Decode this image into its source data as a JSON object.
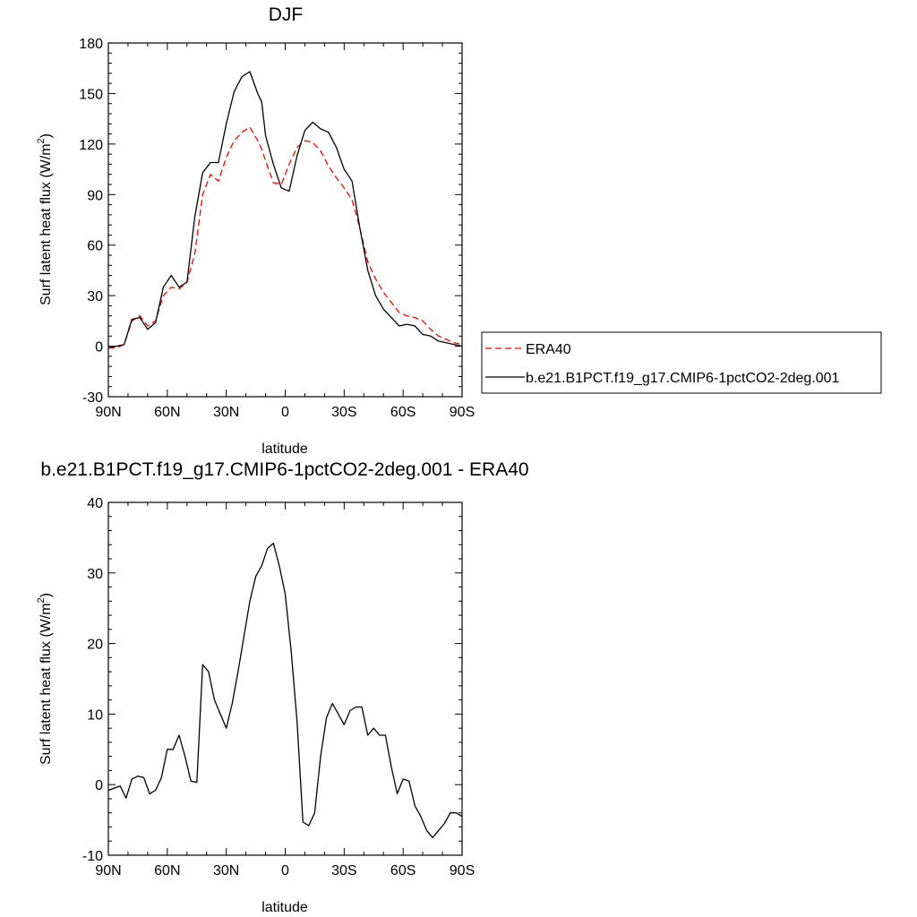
{
  "chart_data": [
    {
      "type": "line",
      "title": "DJF",
      "xlabel": "latitude",
      "ylabel": "Surf latent heat flux (W/m",
      "ylabel_sup": "2",
      "ylabel_end": ")",
      "xlim": [
        -90,
        90
      ],
      "ylim": [
        -30,
        180
      ],
      "x_ticks": [
        -90,
        -60,
        -30,
        0,
        30,
        60,
        90
      ],
      "x_tick_labels": [
        "90N",
        "60N",
        "30N",
        "0",
        "30S",
        "60S",
        "90S"
      ],
      "y_ticks": [
        -30,
        0,
        30,
        60,
        90,
        120,
        150,
        180
      ],
      "grid": false,
      "legend_position": "right",
      "series": [
        {
          "name": "ERA40",
          "color": "#ff0000",
          "dash": "dashed",
          "x": [
            -90,
            -86,
            -82,
            -78,
            -74,
            -70,
            -66,
            -62,
            -58,
            -54,
            -50,
            -46,
            -42,
            -38,
            -34,
            -30,
            -26,
            -22,
            -18,
            -14,
            -12,
            -10,
            -6,
            -2,
            2,
            6,
            10,
            14,
            18,
            22,
            26,
            30,
            34,
            38,
            42,
            46,
            50,
            54,
            58,
            62,
            66,
            70,
            74,
            78,
            82,
            86,
            90
          ],
          "y": [
            -1,
            -1,
            1,
            15,
            18,
            12,
            15,
            30,
            35,
            34,
            38,
            55,
            90,
            102,
            98,
            112,
            122,
            127,
            130,
            122,
            117,
            110,
            97,
            96,
            108,
            118,
            122,
            121,
            116,
            107,
            100,
            94,
            87,
            70,
            50,
            40,
            32,
            26,
            20,
            18,
            17,
            15,
            10,
            6,
            4,
            2,
            1
          ]
        },
        {
          "name": "b.e21.B1PCT.f19_g17.CMIP6-1pctCO2-2deg.001",
          "color": "#000000",
          "dash": "solid",
          "x": [
            -90,
            -86,
            -82,
            -78,
            -74,
            -70,
            -66,
            -62,
            -58,
            -54,
            -50,
            -46,
            -42,
            -38,
            -34,
            -30,
            -26,
            -22,
            -18,
            -14,
            -12,
            -10,
            -6,
            -2,
            2,
            6,
            10,
            14,
            18,
            22,
            26,
            30,
            34,
            38,
            42,
            46,
            50,
            54,
            58,
            62,
            66,
            70,
            74,
            78,
            82,
            86,
            90
          ],
          "y": [
            -1,
            0,
            1,
            16,
            17,
            10,
            14,
            35,
            42,
            35,
            38,
            77,
            103,
            109,
            109,
            132,
            151,
            160,
            163,
            150,
            145,
            125,
            108,
            94,
            92,
            113,
            128,
            133,
            129,
            127,
            118,
            105,
            98,
            70,
            45,
            30,
            22,
            17,
            12,
            13,
            12,
            7,
            6,
            3,
            2,
            1,
            0
          ]
        }
      ]
    },
    {
      "type": "line",
      "title": "b.e21.B1PCT.f19_g17.CMIP6-1pctCO2-2deg.001 - ERA40",
      "xlabel": "latitude",
      "ylabel": "Surf latent heat flux (W/m",
      "ylabel_sup": "2",
      "ylabel_end": ")",
      "xlim": [
        -90,
        90
      ],
      "ylim": [
        -10,
        40
      ],
      "x_ticks": [
        -90,
        -60,
        -30,
        0,
        30,
        60,
        90
      ],
      "x_tick_labels": [
        "90N",
        "60N",
        "30N",
        "0",
        "30S",
        "60S",
        "90S"
      ],
      "y_ticks": [
        -10,
        0,
        10,
        20,
        30,
        40
      ],
      "grid": false,
      "series": [
        {
          "color": "#000000",
          "dash": "solid",
          "x": [
            -90,
            -87,
            -84,
            -81,
            -78,
            -75,
            -72,
            -69,
            -66,
            -63,
            -60,
            -57,
            -54,
            -51,
            -48,
            -45,
            -42,
            -39,
            -36,
            -33,
            -30,
            -27,
            -24,
            -21,
            -18,
            -15,
            -12,
            -9,
            -6,
            -3,
            0,
            3,
            6,
            9,
            12,
            15,
            18,
            21,
            24,
            27,
            30,
            33,
            36,
            39,
            42,
            45,
            48,
            51,
            54,
            57,
            60,
            63,
            66,
            69,
            72,
            75,
            78,
            81,
            84,
            87,
            90
          ],
          "y": [
            -0.8,
            -0.5,
            -0.2,
            -1.9,
            0.8,
            1.2,
            1.0,
            -1.3,
            -0.8,
            1.0,
            5.0,
            5.0,
            7.0,
            4.0,
            0.5,
            0.3,
            17.0,
            16.0,
            12.0,
            10.0,
            8.0,
            11.5,
            16.0,
            21.0,
            26.0,
            29.5,
            31.0,
            33.5,
            34.2,
            31.0,
            27.0,
            19.0,
            9.0,
            -5.3,
            -5.8,
            -4.0,
            4.0,
            9.5,
            11.5,
            10.0,
            8.5,
            10.5,
            11.0,
            11.0,
            7.0,
            8.0,
            7.0,
            7.0,
            2.5,
            -1.3,
            0.8,
            0.5,
            -3.0,
            -4.5,
            -6.5,
            -7.5,
            -6.5,
            -5.5,
            -4.0,
            -4.0,
            -4.5
          ]
        }
      ]
    }
  ],
  "legend": {
    "entries": [
      {
        "label": "ERA40",
        "color": "#ff0000",
        "dash": "dashed"
      },
      {
        "label": "b.e21.B1PCT.f19_g17.CMIP6-1pctCO2-2deg.001",
        "color": "#000000",
        "dash": "solid"
      }
    ]
  }
}
